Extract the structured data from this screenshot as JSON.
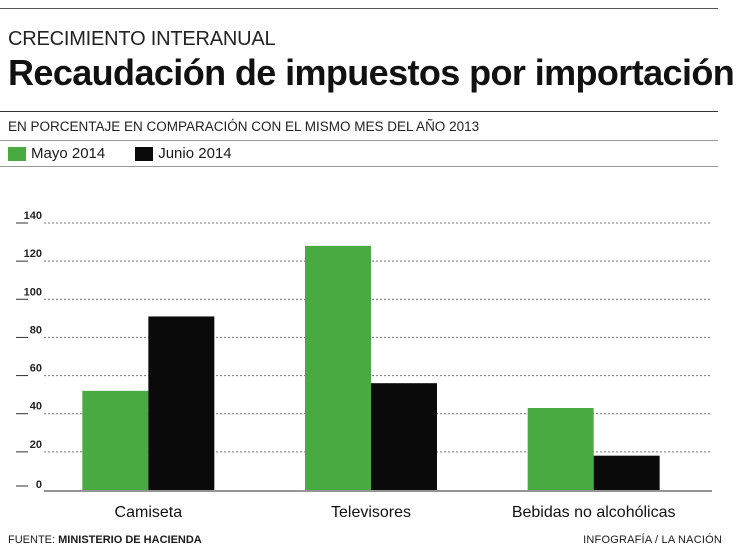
{
  "header": {
    "kicker": "CRECIMIENTO INTERANUAL",
    "title": "Recaudación de impuestos por importación",
    "subtitle": "EN PORCENTAJE EN COMPARACIÓN CON EL MISMO MES DEL AÑO 2013"
  },
  "legend": [
    {
      "label": "Mayo 2014",
      "color": "#4aaa42"
    },
    {
      "label": "Junio 2014",
      "color": "#0a0a0a"
    }
  ],
  "chart_data": {
    "type": "bar",
    "title": "Recaudación de impuestos por importación",
    "categories": [
      "Camiseta",
      "Televisores",
      "Bebidas no alcohólicas"
    ],
    "series": [
      {
        "name": "Mayo 2014",
        "color": "#4aaa42",
        "values": [
          52,
          128,
          43
        ]
      },
      {
        "name": "Junio 2014",
        "color": "#0a0a0a",
        "values": [
          91,
          56,
          18
        ]
      }
    ],
    "ylim": [
      0,
      140
    ],
    "yticks": [
      "0",
      "20",
      "40",
      "60",
      "80",
      "100",
      "120",
      "140"
    ],
    "grid": true,
    "xlabel": "",
    "ylabel": ""
  },
  "footer": {
    "source_label": "FUENTE:",
    "source_name": "MINISTERIO DE HACIENDA",
    "credit": "INFOGRAFÍA / LA NACIÓN"
  }
}
